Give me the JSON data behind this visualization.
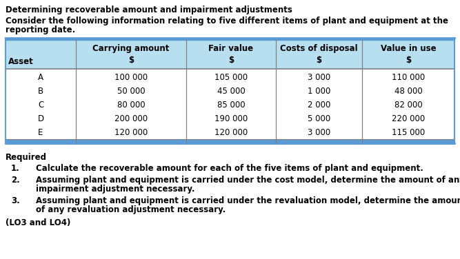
{
  "title": "Determining recoverable amount and impairment adjustments",
  "intro_line1": "Consider the following information relating to five different items of plant and equipment at the",
  "intro_line2": "reporting date.",
  "col_headers_line1": [
    "",
    "Carrying amount",
    "Fair value",
    "Costs of disposal",
    "Value in use"
  ],
  "col_headers_line2": [
    "Asset",
    "$",
    "$",
    "$",
    "$"
  ],
  "rows": [
    [
      "A",
      "100 000",
      "105 000",
      "3 000",
      "110 000"
    ],
    [
      "B",
      "50 000",
      "45 000",
      "1 000",
      "48 000"
    ],
    [
      "C",
      "80 000",
      "85 000",
      "2 000",
      "82 000"
    ],
    [
      "D",
      "200 000",
      "190 000",
      "5 000",
      "220 000"
    ],
    [
      "E",
      "120 000",
      "120 000",
      "3 000",
      "115 000"
    ]
  ],
  "required_label": "Required",
  "req_items": [
    [
      "1.",
      "Calculate the recoverable amount for each of the five items of plant and equipment."
    ],
    [
      "2.",
      "Assuming plant and equipment is carried under the cost model, determine the amount of any\nimpairment adjustment necessary."
    ],
    [
      "3.",
      "Assuming plant and equipment is carried under the revaluation model, determine the amount\nof any revaluation adjustment necessary."
    ]
  ],
  "footer": "(LO3 and LO4)",
  "header_bg": "#b8dff0",
  "border_color": "#5b9bd5",
  "divider_color": "#808080",
  "text_color": "#000000",
  "font_size": 8.5
}
